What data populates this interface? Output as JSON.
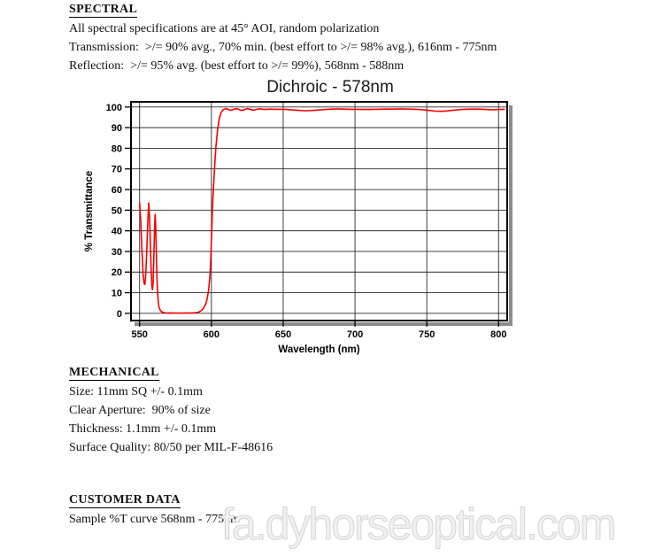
{
  "spectral": {
    "heading": "SPECTRAL",
    "lines": [
      "All spectral specifications are at 45° AOI, random polarization",
      "Transmission:  >/= 90% avg., 70% min. (best effort to >/= 98% avg.), 616nm - 775nm",
      "Reflection:  >/= 95% avg. (best effort to >/= 99%), 568nm - 588nm"
    ]
  },
  "chart_data": {
    "type": "line",
    "title": "Dichroic - 578nm",
    "xlabel": "Wavelength (nm)",
    "ylabel": "% Transmittance",
    "xlim": [
      544,
      806
    ],
    "ylim": [
      -3.5,
      102.5
    ],
    "x_ticks": [
      550,
      600,
      650,
      700,
      750,
      800
    ],
    "y_ticks": [
      0,
      10,
      20,
      30,
      40,
      50,
      60,
      70,
      80,
      90,
      100
    ],
    "grid": true,
    "legend": "none",
    "line_color": "#f40000",
    "grid_color": "#2a2a2a",
    "frame_color": "#000000",
    "shadow_color": "#8c8c8c",
    "series": [
      {
        "name": "%T sample curve",
        "points": [
          [
            550,
            53.5
          ],
          [
            550.8,
            45
          ],
          [
            551.6,
            31
          ],
          [
            552.4,
            19
          ],
          [
            553.1,
            14.5
          ],
          [
            553.7,
            14
          ],
          [
            554.3,
            19
          ],
          [
            555,
            30
          ],
          [
            555.7,
            44
          ],
          [
            556.3,
            53.5
          ],
          [
            556.9,
            47
          ],
          [
            557.5,
            33
          ],
          [
            558.1,
            19
          ],
          [
            558.6,
            12.5
          ],
          [
            559,
            11.5
          ],
          [
            559.4,
            15
          ],
          [
            559.9,
            27
          ],
          [
            560.4,
            41
          ],
          [
            560.8,
            48
          ],
          [
            561.2,
            42
          ],
          [
            561.7,
            28
          ],
          [
            562.2,
            15
          ],
          [
            562.8,
            7
          ],
          [
            563.5,
            3.2
          ],
          [
            564.3,
            1.6
          ],
          [
            565.2,
            0.8
          ],
          [
            566.5,
            0.4
          ],
          [
            568,
            0.25
          ],
          [
            571,
            0.18
          ],
          [
            575,
            0.15
          ],
          [
            580,
            0.15
          ],
          [
            585,
            0.18
          ],
          [
            588,
            0.25
          ],
          [
            590,
            0.4
          ],
          [
            591.5,
            0.7
          ],
          [
            593,
            1.3
          ],
          [
            594.5,
            2.4
          ],
          [
            596,
            4.5
          ],
          [
            597,
            7
          ],
          [
            598,
            11
          ],
          [
            599,
            18
          ],
          [
            599.6,
            27
          ],
          [
            600.2,
            40
          ],
          [
            600.8,
            52
          ],
          [
            601.5,
            62
          ],
          [
            602.3,
            72
          ],
          [
            603.2,
            81
          ],
          [
            604.2,
            88.5
          ],
          [
            605.2,
            93.5
          ],
          [
            606.2,
            96.3
          ],
          [
            607.2,
            97.9
          ],
          [
            608.4,
            98.8
          ],
          [
            610,
            99.2
          ],
          [
            611.5,
            98.9
          ],
          [
            613,
            98.4
          ],
          [
            614.5,
            98.5
          ],
          [
            616,
            99
          ],
          [
            617.5,
            99.2
          ],
          [
            619,
            98.9
          ],
          [
            620.5,
            98.4
          ],
          [
            622,
            98.4
          ],
          [
            623.5,
            98.9
          ],
          [
            625,
            99.2
          ],
          [
            626.5,
            99
          ],
          [
            628,
            98.6
          ],
          [
            629.5,
            98.5
          ],
          [
            631,
            98.8
          ],
          [
            633,
            99.1
          ],
          [
            635,
            99
          ],
          [
            637,
            98.8
          ],
          [
            639,
            98.9
          ],
          [
            641,
            99
          ],
          [
            644,
            98.9
          ],
          [
            648,
            98.9
          ],
          [
            652,
            98.8
          ],
          [
            656,
            98.6
          ],
          [
            660,
            98.4
          ],
          [
            664,
            98.2
          ],
          [
            668,
            98.2
          ],
          [
            672,
            98.4
          ],
          [
            676,
            98.6
          ],
          [
            680,
            98.8
          ],
          [
            684,
            99
          ],
          [
            688,
            99.1
          ],
          [
            692,
            99
          ],
          [
            696,
            98.9
          ],
          [
            700,
            98.9
          ],
          [
            705,
            98.8
          ],
          [
            710,
            98.8
          ],
          [
            715,
            98.9
          ],
          [
            720,
            99
          ],
          [
            726,
            99
          ],
          [
            732,
            99.1
          ],
          [
            738,
            99
          ],
          [
            744,
            98.8
          ],
          [
            748,
            98.6
          ],
          [
            752,
            98.3
          ],
          [
            756,
            98
          ],
          [
            760,
            97.9
          ],
          [
            764,
            98.1
          ],
          [
            768,
            98.4
          ],
          [
            772,
            98.7
          ],
          [
            776,
            98.9
          ],
          [
            781,
            99
          ],
          [
            786,
            99
          ],
          [
            791,
            98.8
          ],
          [
            796,
            98.7
          ],
          [
            800,
            98.8
          ],
          [
            804,
            98.9
          ]
        ]
      }
    ]
  },
  "mechanical": {
    "heading": "MECHANICAL",
    "lines": [
      "Size: 11mm SQ +/- 0.1mm",
      "Clear Aperture:  90% of size",
      "Thickness: 1.1mm +/- 0.1mm",
      "Surface Quality: 80/50 per MIL-F-48616"
    ]
  },
  "customer_data": {
    "heading": "CUSTOMER DATA",
    "lines": [
      "Sample %T curve 568nm - 775nm"
    ]
  },
  "watermark": {
    "text": "fa.dyhorseoptical.com",
    "color": "#f1f1f1"
  }
}
